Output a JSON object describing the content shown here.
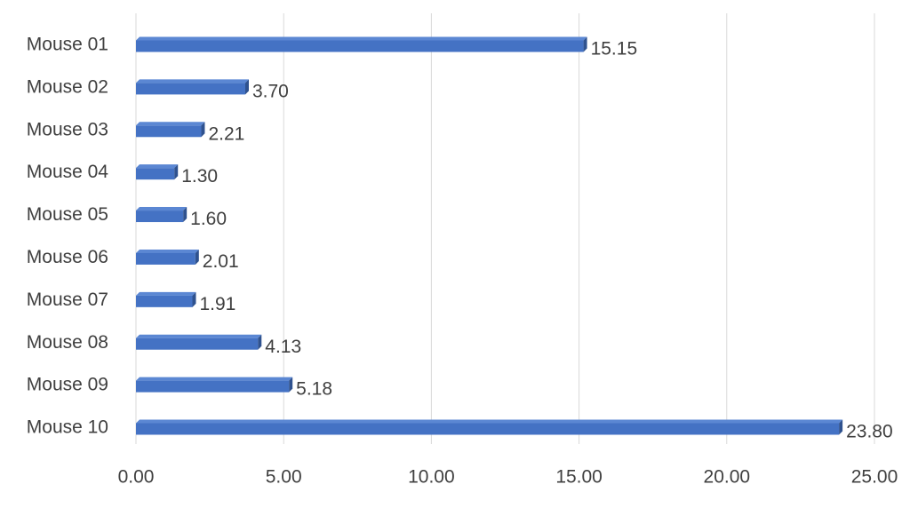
{
  "chart_data": {
    "type": "hbar",
    "categories": [
      "Mouse 01",
      "Mouse 02",
      "Mouse 03",
      "Mouse 04",
      "Mouse 05",
      "Mouse 06",
      "Mouse 07",
      "Mouse 08",
      "Mouse 09",
      "Mouse 10"
    ],
    "values": [
      15.15,
      3.7,
      2.21,
      1.3,
      1.6,
      2.01,
      1.91,
      4.13,
      5.18,
      23.8
    ],
    "value_labels": [
      "15.15",
      "3.70",
      "2.21",
      "1.30",
      "1.60",
      "2.01",
      "1.91",
      "4.13",
      "5.18",
      "23.80"
    ],
    "color": "#4472c4",
    "xlim": [
      0,
      25
    ],
    "xticks": [
      {
        "value": 0,
        "label": "0.00"
      },
      {
        "value": 5,
        "label": "5.00"
      },
      {
        "value": 10,
        "label": "10.00"
      },
      {
        "value": 15,
        "label": "15.00"
      },
      {
        "value": 20,
        "label": "20.00"
      },
      {
        "value": 25,
        "label": "25.00"
      }
    ],
    "grid": true
  }
}
